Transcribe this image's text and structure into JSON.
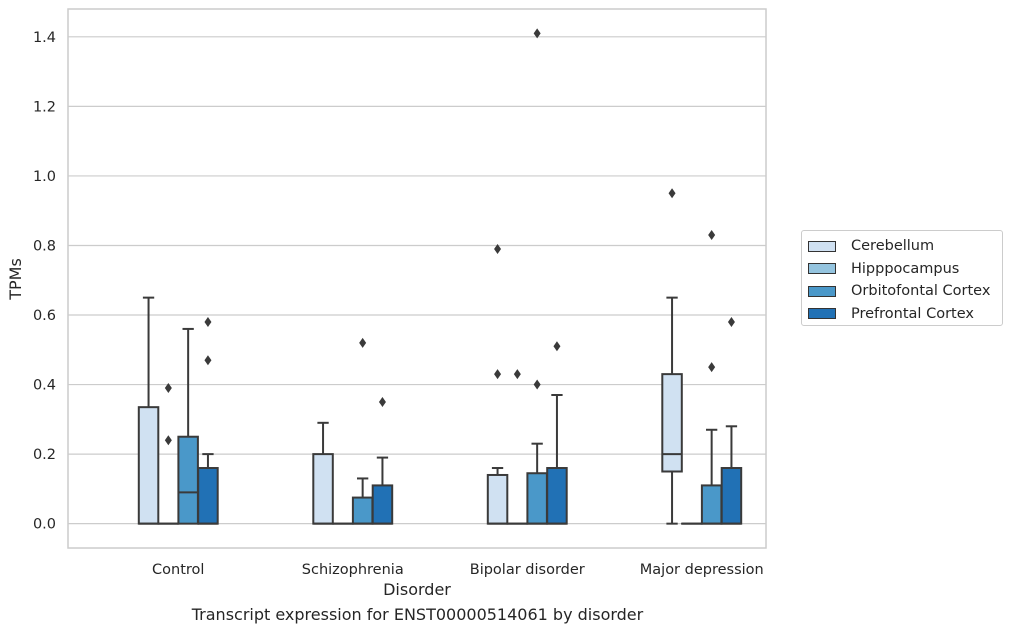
{
  "chart_data": {
    "type": "box",
    "title": "",
    "caption": "Transcript expression for ENST00000514061 by disorder",
    "xlabel": "Disorder",
    "ylabel": "TPMs",
    "ylim": [
      -0.07,
      1.48
    ],
    "yticks": [
      "0.0",
      "0.2",
      "0.4",
      "0.6",
      "0.8",
      "1.0",
      "1.2",
      "1.4"
    ],
    "grid": true,
    "legend_position": "right",
    "categories": [
      "Control",
      "Schizophrenia",
      "Bipolar disorder",
      "Major depression"
    ],
    "series": [
      {
        "name": "Cerebellum",
        "color": "#d0e1f2",
        "boxes": [
          {
            "category": "Control",
            "min": 0.0,
            "q1": 0.0,
            "median": 0.0,
            "q3": 0.335,
            "max": 0.65,
            "outliers": []
          },
          {
            "category": "Schizophrenia",
            "min": 0.0,
            "q1": 0.0,
            "median": 0.0,
            "q3": 0.2,
            "max": 0.29,
            "outliers": []
          },
          {
            "category": "Bipolar disorder",
            "min": 0.0,
            "q1": 0.0,
            "median": 0.0,
            "q3": 0.14,
            "max": 0.16,
            "outliers": [
              0.43,
              0.79
            ]
          },
          {
            "category": "Major depression",
            "min": 0.0,
            "q1": 0.15,
            "median": 0.2,
            "q3": 0.43,
            "max": 0.65,
            "outliers": [
              0.95
            ]
          }
        ]
      },
      {
        "name": "Hipppocampus",
        "color": "#94c4df",
        "boxes": [
          {
            "category": "Control",
            "min": 0.0,
            "q1": 0.0,
            "median": 0.0,
            "q3": 0.0,
            "max": 0.0,
            "outliers": [
              0.24,
              0.39
            ]
          },
          {
            "category": "Schizophrenia",
            "min": 0.0,
            "q1": 0.0,
            "median": 0.0,
            "q3": 0.0,
            "max": 0.0,
            "outliers": []
          },
          {
            "category": "Bipolar disorder",
            "min": 0.0,
            "q1": 0.0,
            "median": 0.0,
            "q3": 0.0,
            "max": 0.0,
            "outliers": [
              0.43
            ]
          },
          {
            "category": "Major depression",
            "min": 0.0,
            "q1": 0.0,
            "median": 0.0,
            "q3": 0.0,
            "max": 0.0,
            "outliers": []
          }
        ]
      },
      {
        "name": "Orbitofontal Cortex",
        "color": "#4a98c9",
        "boxes": [
          {
            "category": "Control",
            "min": 0.0,
            "q1": 0.0,
            "median": 0.09,
            "q3": 0.25,
            "max": 0.56,
            "outliers": []
          },
          {
            "category": "Schizophrenia",
            "min": 0.0,
            "q1": 0.0,
            "median": 0.0,
            "q3": 0.075,
            "max": 0.13,
            "outliers": [
              0.52
            ]
          },
          {
            "category": "Bipolar disorder",
            "min": 0.0,
            "q1": 0.0,
            "median": 0.0,
            "q3": 0.145,
            "max": 0.23,
            "outliers": [
              0.4,
              1.41
            ]
          },
          {
            "category": "Major depression",
            "min": 0.0,
            "q1": 0.0,
            "median": 0.0,
            "q3": 0.11,
            "max": 0.27,
            "outliers": [
              0.45,
              0.83
            ]
          }
        ]
      },
      {
        "name": "Prefrontal Cortex",
        "color": "#2171b5",
        "boxes": [
          {
            "category": "Control",
            "min": 0.0,
            "q1": 0.0,
            "median": 0.0,
            "q3": 0.16,
            "max": 0.2,
            "outliers": [
              0.47,
              0.58
            ]
          },
          {
            "category": "Schizophrenia",
            "min": 0.0,
            "q1": 0.0,
            "median": 0.0,
            "q3": 0.11,
            "max": 0.19,
            "outliers": [
              0.35
            ]
          },
          {
            "category": "Bipolar disorder",
            "min": 0.0,
            "q1": 0.0,
            "median": 0.0,
            "q3": 0.16,
            "max": 0.37,
            "outliers": [
              0.51
            ]
          },
          {
            "category": "Major depression",
            "min": 0.0,
            "q1": 0.0,
            "median": 0.0,
            "q3": 0.16,
            "max": 0.28,
            "outliers": [
              0.58
            ]
          }
        ]
      }
    ]
  }
}
